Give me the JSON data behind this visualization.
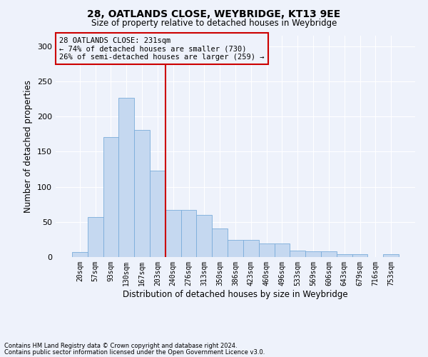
{
  "title_line1": "28, OATLANDS CLOSE, WEYBRIDGE, KT13 9EE",
  "title_line2": "Size of property relative to detached houses in Weybridge",
  "xlabel": "Distribution of detached houses by size in Weybridge",
  "ylabel": "Number of detached properties",
  "bar_values": [
    7,
    57,
    171,
    227,
    181,
    123,
    67,
    67,
    60,
    41,
    24,
    24,
    19,
    19,
    9,
    8,
    8,
    4,
    4,
    0,
    4
  ],
  "bin_labels": [
    "20sqm",
    "57sqm",
    "93sqm",
    "130sqm",
    "167sqm",
    "203sqm",
    "240sqm",
    "276sqm",
    "313sqm",
    "350sqm",
    "386sqm",
    "423sqm",
    "460sqm",
    "496sqm",
    "533sqm",
    "569sqm",
    "606sqm",
    "643sqm",
    "679sqm",
    "716sqm",
    "753sqm"
  ],
  "bar_color": "#c5d8f0",
  "bar_edge_color": "#7aacda",
  "vline_x": 5.5,
  "vline_color": "#cc0000",
  "annotation_box_text": "28 OATLANDS CLOSE: 231sqm\n← 74% of detached houses are smaller (730)\n26% of semi-detached houses are larger (259) →",
  "annotation_fontsize": 7.5,
  "box_edge_color": "#cc0000",
  "ylim": [
    0,
    315
  ],
  "yticks": [
    0,
    50,
    100,
    150,
    200,
    250,
    300
  ],
  "footer_line1": "Contains HM Land Registry data © Crown copyright and database right 2024.",
  "footer_line2": "Contains public sector information licensed under the Open Government Licence v3.0.",
  "bg_color": "#eef2fb",
  "grid_color": "#ffffff"
}
